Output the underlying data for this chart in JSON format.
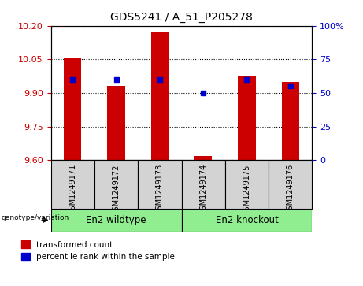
{
  "title": "GDS5241 / A_51_P205278",
  "samples": [
    "GSM1249171",
    "GSM1249172",
    "GSM1249173",
    "GSM1249174",
    "GSM1249175",
    "GSM1249176"
  ],
  "red_values": [
    10.055,
    9.93,
    10.175,
    9.62,
    9.975,
    9.95
  ],
  "blue_values": [
    60,
    60,
    60,
    50,
    60,
    55
  ],
  "ylim_left": [
    9.6,
    10.2
  ],
  "ylim_right": [
    0,
    100
  ],
  "yticks_left": [
    9.6,
    9.75,
    9.9,
    10.05,
    10.2
  ],
  "yticks_right": [
    0,
    25,
    50,
    75,
    100
  ],
  "ytick_labels_right": [
    "0",
    "25",
    "50",
    "75",
    "100%"
  ],
  "bar_bottom": 9.6,
  "bar_color": "#cc0000",
  "dot_color": "#0000cc",
  "grid_color": "#000000",
  "bg_color": "#ffffff",
  "plot_bg": "#ffffff",
  "group1_label": "En2 wildtype",
  "group2_label": "En2 knockout",
  "group1_indices": [
    0,
    1,
    2
  ],
  "group2_indices": [
    3,
    4,
    5
  ],
  "group1_color": "#90ee90",
  "group2_color": "#90ee90",
  "xticklabel_bg": "#d3d3d3",
  "legend_red_label": "transformed count",
  "legend_blue_label": "percentile rank within the sample",
  "genotype_label": "genotype/variation",
  "bar_width": 0.4
}
